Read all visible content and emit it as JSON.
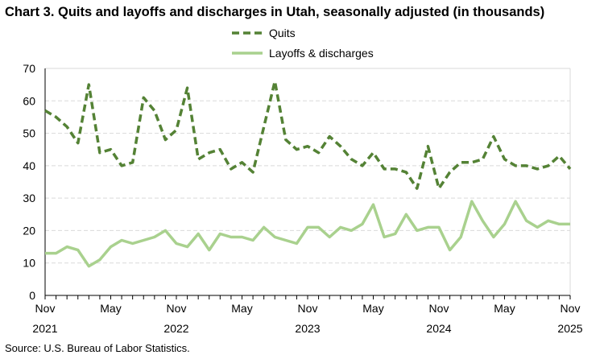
{
  "title": "Chart 3. Quits and layoffs and discharges in Utah, seasonally adjusted (in thousands)",
  "source": "Source: U.S. Bureau of Labor Statistics.",
  "chart_data": {
    "type": "line",
    "title": "Chart 3. Quits and layoffs and discharges in Utah, seasonally adjusted (in thousands)",
    "x_start": "Nov 2021",
    "x_end": "Nov 2025",
    "x_frequency": "monthly",
    "x_tick_labels": [
      {
        "month": "Nov",
        "year": "2021"
      },
      {
        "month": "May",
        "year": ""
      },
      {
        "month": "Nov",
        "year": "2022"
      },
      {
        "month": "May",
        "year": ""
      },
      {
        "month": "Nov",
        "year": "2023"
      },
      {
        "month": "May",
        "year": ""
      },
      {
        "month": "Nov",
        "year": "2024"
      },
      {
        "month": "May",
        "year": ""
      },
      {
        "month": "Nov",
        "year": "2025"
      }
    ],
    "ylim": [
      0,
      70
    ],
    "y_ticks": [
      0,
      10,
      20,
      30,
      40,
      50,
      60,
      70
    ],
    "grid": "horizontal dashed",
    "legend": "top-center",
    "series": [
      {
        "name": "Quits",
        "color": "#548235",
        "style": "dashed",
        "values": [
          57,
          55,
          52,
          47,
          65,
          44,
          45,
          40,
          41,
          61,
          57,
          48,
          51,
          64,
          42,
          44,
          45,
          39,
          41,
          38,
          52,
          66,
          48,
          45,
          46,
          44,
          49,
          46,
          42,
          40,
          44,
          39,
          39,
          38,
          33,
          46,
          33,
          38,
          41,
          41,
          42,
          49,
          42,
          40,
          40,
          39,
          40,
          43,
          39
        ]
      },
      {
        "name": "Layoffs & discharges",
        "color": "#a9d18e",
        "style": "solid",
        "values": [
          13,
          13,
          15,
          14,
          9,
          11,
          15,
          17,
          16,
          17,
          18,
          20,
          16,
          15,
          19,
          14,
          19,
          18,
          18,
          17,
          21,
          18,
          17,
          16,
          21,
          21,
          18,
          21,
          20,
          22,
          28,
          18,
          19,
          25,
          20,
          21,
          21,
          14,
          18,
          29,
          23,
          18,
          22,
          29,
          23,
          21,
          23,
          22,
          22
        ]
      }
    ]
  }
}
